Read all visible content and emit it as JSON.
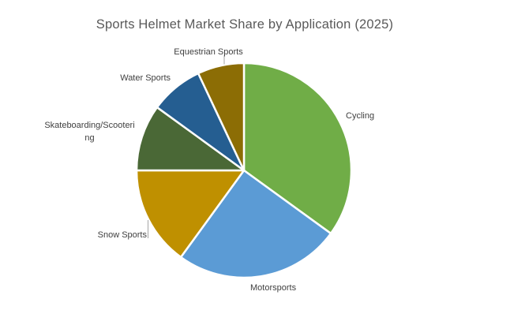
{
  "chart_data": {
    "type": "pie",
    "title": "Sports Helmet Market Share by Application (2025)",
    "categories": [
      "Cycling",
      "Motorsports",
      "Snow Sports",
      "Skateboarding/Scootering",
      "Water Sports",
      "Equestrian Sports"
    ],
    "values": [
      35,
      25,
      15,
      10,
      8,
      7
    ],
    "unit": "percent-of-total",
    "colors": [
      "#70AD47",
      "#5B9BD5",
      "#BF9000",
      "#4A6836",
      "#255E91",
      "#8C6D05"
    ],
    "start_angle_deg": 0,
    "direction": "clockwise",
    "slice_border_color": "#FFFFFF",
    "legend": "none",
    "label_style": "category-labels-outside"
  },
  "labels": {
    "cycling": "Cycling",
    "motorsports": "Motorsports",
    "snow_sports": "Snow Sports",
    "skateboarding_line1": "Skateboarding/Scooteri",
    "skateboarding_line2": "ng",
    "water_sports": "Water Sports",
    "equestrian_sports": "Equestrian Sports"
  },
  "text_colors": {
    "title": "#595959",
    "labels": "#404040",
    "leader_line": "#A6A6A6"
  }
}
